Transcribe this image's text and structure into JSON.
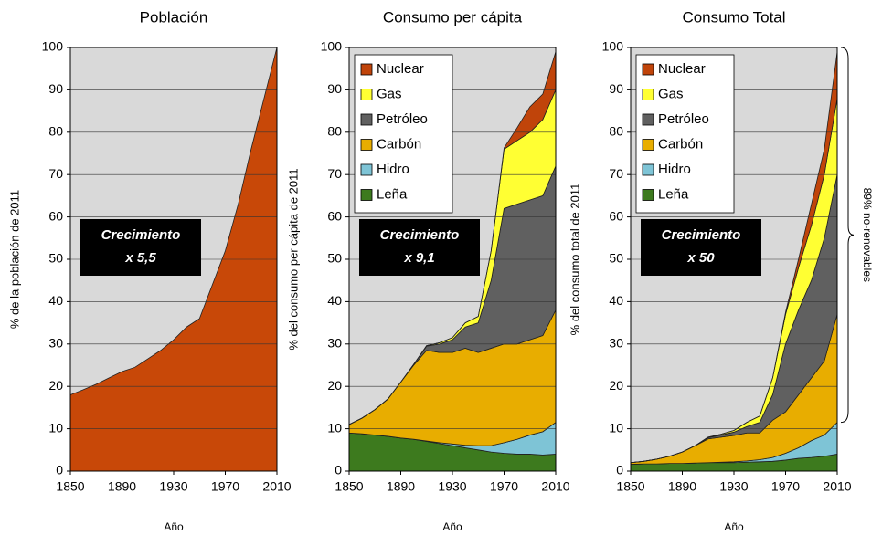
{
  "chart_data": [
    {
      "type": "area",
      "title": "Población",
      "ylabel": "% de la población de 2011",
      "xlabel": "Año",
      "x": [
        1850,
        1860,
        1870,
        1880,
        1890,
        1900,
        1910,
        1920,
        1930,
        1940,
        1950,
        1960,
        1970,
        1980,
        1990,
        2000,
        2010
      ],
      "values": [
        18,
        19.2,
        20.5,
        22,
        23.5,
        24.5,
        26.5,
        28.5,
        31,
        34,
        36,
        44,
        52,
        63,
        76,
        88,
        100
      ],
      "color": "#c84808",
      "xlim": [
        1850,
        2010
      ],
      "xticks": [
        1850,
        1890,
        1930,
        1970,
        2010
      ],
      "ylim": [
        0,
        100
      ],
      "yticks": [
        0,
        10,
        20,
        30,
        40,
        50,
        60,
        70,
        80,
        90,
        100
      ],
      "grid": true,
      "annotation": [
        "Crecimiento",
        "x 5,5"
      ]
    },
    {
      "type": "stacked_area",
      "title": "Consumo per cápita",
      "ylabel": "% del consumo per cápita de 2011",
      "xlabel": "Año",
      "x": [
        1850,
        1860,
        1870,
        1880,
        1890,
        1900,
        1910,
        1920,
        1930,
        1940,
        1950,
        1960,
        1970,
        1980,
        1990,
        2000,
        2010
      ],
      "series": [
        {
          "name": "Leña",
          "color": "#3d7a1e",
          "values": [
            9,
            8.8,
            8.5,
            8.2,
            7.8,
            7.5,
            7,
            6.5,
            6,
            5.5,
            5,
            4.5,
            4.2,
            4,
            4,
            3.8,
            4
          ]
        },
        {
          "name": "Hidro",
          "color": "#7ec4d6",
          "values": [
            0,
            0,
            0,
            0,
            0,
            0,
            0.1,
            0.2,
            0.4,
            0.6,
            1,
            1.5,
            2.5,
            3.5,
            4.5,
            5.5,
            7.5
          ]
        },
        {
          "name": "Carbón",
          "color": "#e8ad00",
          "values": [
            2,
            3.7,
            6,
            8.8,
            13.2,
            17.5,
            21.4,
            21.3,
            21.6,
            22.9,
            22,
            23,
            23.3,
            22.5,
            22.5,
            22.7,
            26.5
          ]
        },
        {
          "name": "Petróleo",
          "color": "#606060",
          "values": [
            0,
            0,
            0,
            0,
            0,
            0.2,
            1,
            2,
            3,
            5,
            7,
            16,
            32,
            33,
            33,
            33,
            34
          ]
        },
        {
          "name": "Gas",
          "color": "#ffff33",
          "values": [
            0,
            0,
            0,
            0,
            0,
            0,
            0.1,
            0.3,
            0.5,
            1,
            1.5,
            7,
            14,
            15,
            16,
            18,
            18
          ]
        },
        {
          "name": "Nuclear",
          "color": "#c0440a",
          "values": [
            0,
            0,
            0,
            0,
            0,
            0,
            0,
            0,
            0,
            0,
            0,
            0,
            0.3,
            3,
            6,
            6,
            9
          ]
        }
      ],
      "xlim": [
        1850,
        2010
      ],
      "xticks": [
        1850,
        1890,
        1930,
        1970,
        2010
      ],
      "ylim": [
        0,
        100
      ],
      "yticks": [
        0,
        10,
        20,
        30,
        40,
        50,
        60,
        70,
        80,
        90,
        100
      ],
      "grid": true,
      "legend": "upper left",
      "annotation": [
        "Crecimiento",
        "x 9,1"
      ]
    },
    {
      "type": "stacked_area",
      "title": "Consumo Total",
      "ylabel": "% del consumo total de 2011",
      "xlabel": "Año",
      "x": [
        1850,
        1860,
        1870,
        1880,
        1890,
        1900,
        1910,
        1920,
        1930,
        1940,
        1950,
        1960,
        1970,
        1980,
        1990,
        2000,
        2010
      ],
      "series": [
        {
          "name": "Leña",
          "color": "#3d7a1e",
          "values": [
            1.6,
            1.7,
            1.7,
            1.8,
            1.8,
            1.9,
            2,
            2,
            2,
            2.1,
            2.2,
            2.3,
            2.6,
            3,
            3.2,
            3.5,
            4
          ]
        },
        {
          "name": "Hidro",
          "color": "#7ec4d6",
          "values": [
            0,
            0,
            0,
            0,
            0,
            0,
            0,
            0.1,
            0.2,
            0.3,
            0.5,
            0.9,
            1.6,
            2.5,
            4,
            5,
            7.5
          ]
        },
        {
          "name": "Carbón",
          "color": "#e8ad00",
          "values": [
            0.4,
            0.6,
            1.1,
            1.7,
            2.7,
            4.1,
            5.6,
            5.9,
            6.2,
            6.6,
            6.3,
            8.8,
            9.8,
            12.5,
            14.8,
            17.5,
            25.5
          ]
        },
        {
          "name": "Petróleo",
          "color": "#606060",
          "values": [
            0,
            0,
            0,
            0,
            0,
            0,
            0.3,
            0.5,
            0.8,
            1.5,
            2.5,
            6,
            16,
            20,
            23,
            29,
            33
          ]
        },
        {
          "name": "Gas",
          "color": "#ffff33",
          "values": [
            0,
            0,
            0,
            0,
            0,
            0,
            0.1,
            0.2,
            0.4,
            1,
            1.5,
            4,
            7,
            10,
            13,
            15,
            18
          ]
        },
        {
          "name": "Nuclear",
          "color": "#c0440a",
          "values": [
            0,
            0,
            0,
            0,
            0,
            0,
            0,
            0,
            0,
            0,
            0,
            0,
            0.5,
            2,
            5,
            6,
            11
          ]
        }
      ],
      "xlim": [
        1850,
        2010
      ],
      "xticks": [
        1850,
        1890,
        1930,
        1970,
        2010
      ],
      "ylim": [
        0,
        100
      ],
      "yticks": [
        0,
        10,
        20,
        30,
        40,
        50,
        60,
        70,
        80,
        90,
        100
      ],
      "grid": true,
      "legend": "upper left",
      "annotation": [
        "Crecimiento",
        "x 50"
      ],
      "side_note": "89% no-renovables"
    }
  ]
}
